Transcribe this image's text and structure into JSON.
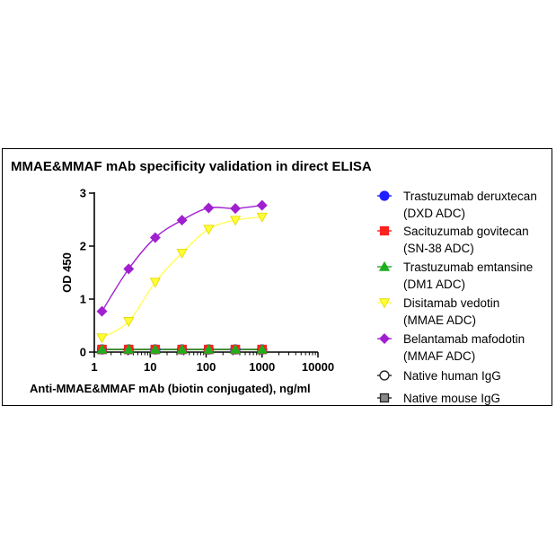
{
  "chart_data": {
    "type": "line",
    "title": "MMAE&MMAF mAb specificity validation in direct ELISA",
    "xlabel": "Anti-MMAE&MMAF mAb (biotin conjugated), ng/ml",
    "ylabel": "OD 450",
    "xscale": "log",
    "xlim": [
      1,
      10000
    ],
    "ylim": [
      0,
      3
    ],
    "x_ticks": [
      "1",
      "10",
      "100",
      "1000",
      "10000"
    ],
    "y_ticks": [
      "0",
      "1",
      "2",
      "3"
    ],
    "legend_placement": "right",
    "grid": false,
    "x": [
      1.37,
      4.12,
      12.3,
      37.0,
      111,
      333,
      1000
    ],
    "series": [
      {
        "name": [
          "Trastuzumab deruxtecan",
          "(DXD ADC)"
        ],
        "marker": "circle",
        "color": "#1f1fff",
        "fill": "#1f1fff",
        "values": [
          0.05,
          0.05,
          0.05,
          0.05,
          0.05,
          0.05,
          0.05
        ]
      },
      {
        "name": [
          "Sacituzumab govitecan",
          "(SN-38 ADC)"
        ],
        "marker": "square",
        "color": "#ff2020",
        "fill": "#ff2020",
        "values": [
          0.05,
          0.05,
          0.05,
          0.05,
          0.05,
          0.05,
          0.05
        ]
      },
      {
        "name": [
          "Trastuzumab emtansine",
          "(DM1 ADC)"
        ],
        "marker": "triangle-up",
        "color": "#1fae1f",
        "fill": "#1fae1f",
        "values": [
          0.05,
          0.05,
          0.05,
          0.05,
          0.05,
          0.05,
          0.05
        ]
      },
      {
        "name": [
          "Disitamab vedotin",
          "(MMAE ADC)"
        ],
        "marker": "triangle-down",
        "color": "#ffff33",
        "fill": "#ffff33",
        "values": [
          0.27,
          0.58,
          1.32,
          1.87,
          2.32,
          2.49,
          2.55
        ]
      },
      {
        "name": [
          "Belantamab mafodotin",
          "(MMAF ADC)"
        ],
        "marker": "diamond",
        "color": "#a020d0",
        "fill": "#a020d0",
        "values": [
          0.77,
          1.57,
          2.16,
          2.49,
          2.72,
          2.71,
          2.77
        ]
      },
      {
        "name": [
          "Native human IgG"
        ],
        "marker": "circle-open",
        "color": "#222222",
        "fill": "#ffffff",
        "values": [
          0.05,
          0.05,
          0.05,
          0.05,
          0.05,
          0.05,
          0.05
        ]
      },
      {
        "name": [
          "Native mouse IgG"
        ],
        "marker": "square-gray",
        "color": "#222222",
        "fill": "#888888",
        "values": [
          0.05,
          0.05,
          0.05,
          0.05,
          0.05,
          0.05,
          0.05
        ]
      }
    ]
  }
}
